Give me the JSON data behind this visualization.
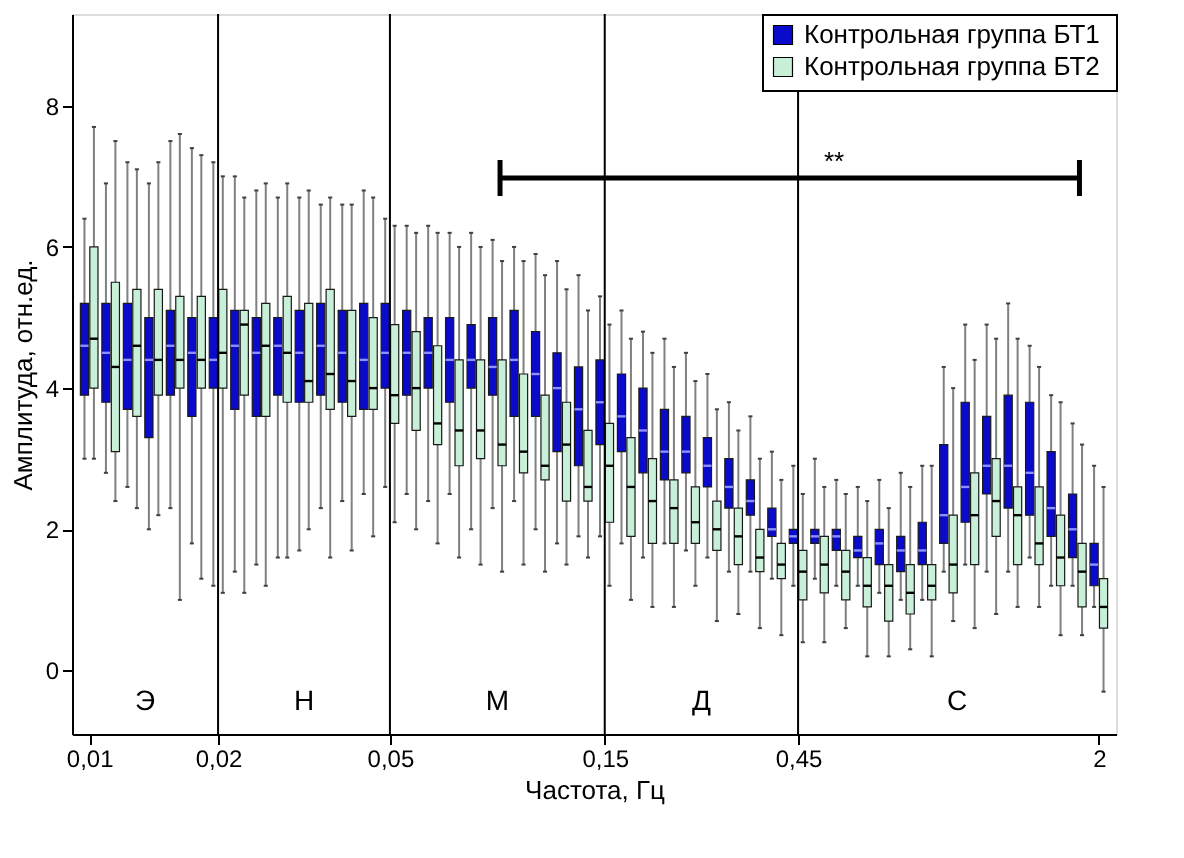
{
  "chart_data": {
    "type": "box",
    "xlabel": "Частота, Гц",
    "ylabel": "Амплитуда, отн.ед.",
    "categories": [
      "0,01",
      null,
      null,
      null,
      null,
      null,
      "0,02",
      null,
      null,
      null,
      null,
      null,
      null,
      null,
      "0,05",
      null,
      null,
      null,
      null,
      null,
      null,
      null,
      null,
      null,
      "0,15",
      null,
      null,
      null,
      null,
      null,
      null,
      null,
      null,
      "0,45",
      null,
      null,
      null,
      null,
      null,
      null,
      null,
      null,
      null,
      null,
      null,
      null,
      null,
      "2"
    ],
    "ylim": [
      -0.9,
      9.3
    ],
    "yticks": [
      0,
      2,
      4,
      6,
      8
    ],
    "grid": false,
    "legend": "top right",
    "ref_lines": [
      {
        "axis": "x",
        "value": "0,02"
      },
      {
        "axis": "x",
        "value": "0,05"
      },
      {
        "axis": "x",
        "value": "0,15"
      },
      {
        "axis": "x",
        "value": "0,45"
      }
    ],
    "annotations": [
      "Э",
      "Н",
      "М",
      "Д",
      "С",
      "**"
    ],
    "series": [
      {
        "name": "Контрольная группа  БТ1",
        "color": "#0a0acd",
        "boxes": [
          {
            "low": 3.0,
            "q1": 3.9,
            "median": 4.6,
            "q3": 5.2,
            "high": 6.4
          },
          {
            "low": 2.8,
            "q1": 3.8,
            "median": 4.5,
            "q3": 5.2,
            "high": 6.9
          },
          {
            "low": 2.6,
            "q1": 3.7,
            "median": 4.4,
            "q3": 5.2,
            "high": 7.2
          },
          {
            "low": 2.0,
            "q1": 3.3,
            "median": 4.4,
            "q3": 5.0,
            "high": 6.9
          },
          {
            "low": 2.3,
            "q1": 3.9,
            "median": 4.6,
            "q3": 5.1,
            "high": 7.5
          },
          {
            "low": 1.8,
            "q1": 3.6,
            "median": 4.5,
            "q3": 5.0,
            "high": 7.4
          },
          {
            "low": 1.2,
            "q1": 4.0,
            "median": 4.4,
            "q3": 5.0,
            "high": 7.2
          },
          {
            "low": 1.4,
            "q1": 3.7,
            "median": 4.6,
            "q3": 5.1,
            "high": 7.0
          },
          {
            "low": 1.5,
            "q1": 3.6,
            "median": 4.5,
            "q3": 5.0,
            "high": 6.8
          },
          {
            "low": 1.6,
            "q1": 3.9,
            "median": 4.6,
            "q3": 5.0,
            "high": 6.7
          },
          {
            "low": 1.7,
            "q1": 3.8,
            "median": 4.5,
            "q3": 5.1,
            "high": 6.7
          },
          {
            "low": 2.3,
            "q1": 3.9,
            "median": 4.6,
            "q3": 5.2,
            "high": 6.6
          },
          {
            "low": 2.4,
            "q1": 3.8,
            "median": 4.5,
            "q3": 5.1,
            "high": 6.6
          },
          {
            "low": 2.5,
            "q1": 3.7,
            "median": 4.4,
            "q3": 5.2,
            "high": 6.8
          },
          {
            "low": 2.6,
            "q1": 4.0,
            "median": 4.5,
            "q3": 5.2,
            "high": 6.4
          },
          {
            "low": 2.5,
            "q1": 3.9,
            "median": 4.5,
            "q3": 5.1,
            "high": 6.3
          },
          {
            "low": 2.4,
            "q1": 4.0,
            "median": 4.5,
            "q3": 5.0,
            "high": 6.3
          },
          {
            "low": 2.5,
            "q1": 3.8,
            "median": 4.4,
            "q3": 5.0,
            "high": 6.2
          },
          {
            "low": 2.0,
            "q1": 4.0,
            "median": 4.4,
            "q3": 4.9,
            "high": 6.2
          },
          {
            "low": 2.3,
            "q1": 3.9,
            "median": 4.3,
            "q3": 5.0,
            "high": 6.1
          },
          {
            "low": 2.4,
            "q1": 3.6,
            "median": 4.4,
            "q3": 5.1,
            "high": 6.0
          },
          {
            "low": 2.0,
            "q1": 3.6,
            "median": 4.2,
            "q3": 4.8,
            "high": 5.9
          },
          {
            "low": 1.8,
            "q1": 3.1,
            "median": 4.0,
            "q3": 4.5,
            "high": 5.8
          },
          {
            "low": 1.9,
            "q1": 2.9,
            "median": 3.7,
            "q3": 4.3,
            "high": 5.6
          },
          {
            "low": 1.9,
            "q1": 3.2,
            "median": 3.8,
            "q3": 4.4,
            "high": 5.3
          },
          {
            "low": 1.8,
            "q1": 3.1,
            "median": 3.6,
            "q3": 4.2,
            "high": 5.1
          },
          {
            "low": 1.6,
            "q1": 2.8,
            "median": 3.4,
            "q3": 4.0,
            "high": 4.8
          },
          {
            "low": 1.8,
            "q1": 2.7,
            "median": 3.1,
            "q3": 3.7,
            "high": 4.7
          },
          {
            "low": 1.7,
            "q1": 2.8,
            "median": 3.1,
            "q3": 3.6,
            "high": 4.5
          },
          {
            "low": 1.6,
            "q1": 2.6,
            "median": 2.9,
            "q3": 3.3,
            "high": 4.2
          },
          {
            "low": 1.4,
            "q1": 2.3,
            "median": 2.6,
            "q3": 3.0,
            "high": 3.8
          },
          {
            "low": 1.4,
            "q1": 2.2,
            "median": 2.4,
            "q3": 2.7,
            "high": 3.6
          },
          {
            "low": 1.3,
            "q1": 1.9,
            "median": 2.0,
            "q3": 2.3,
            "high": 3.1
          },
          {
            "low": 1.2,
            "q1": 1.8,
            "median": 1.9,
            "q3": 2.0,
            "high": 2.9
          },
          {
            "low": 1.3,
            "q1": 1.8,
            "median": 1.9,
            "q3": 2.0,
            "high": 3.0
          },
          {
            "low": 1.2,
            "q1": 1.7,
            "median": 1.9,
            "q3": 2.0,
            "high": 2.7
          },
          {
            "low": 1.2,
            "q1": 1.6,
            "median": 1.7,
            "q3": 1.9,
            "high": 2.6
          },
          {
            "low": 1.1,
            "q1": 1.5,
            "median": 1.8,
            "q3": 2.0,
            "high": 2.7
          },
          {
            "low": 1.0,
            "q1": 1.4,
            "median": 1.7,
            "q3": 1.9,
            "high": 2.8
          },
          {
            "low": 1.0,
            "q1": 1.5,
            "median": 1.7,
            "q3": 2.1,
            "high": 2.9
          },
          {
            "low": 1.4,
            "q1": 1.8,
            "median": 2.2,
            "q3": 3.2,
            "high": 4.3
          },
          {
            "low": 1.5,
            "q1": 2.1,
            "median": 2.6,
            "q3": 3.8,
            "high": 4.9
          },
          {
            "low": 1.4,
            "q1": 2.5,
            "median": 2.9,
            "q3": 3.6,
            "high": 4.9
          },
          {
            "low": 1.4,
            "q1": 2.3,
            "median": 2.9,
            "q3": 3.9,
            "high": 5.2
          },
          {
            "low": 1.6,
            "q1": 2.2,
            "median": 2.8,
            "q3": 3.8,
            "high": 4.6
          },
          {
            "low": 1.2,
            "q1": 1.9,
            "median": 2.3,
            "q3": 3.1,
            "high": 3.9
          },
          {
            "low": 1.2,
            "q1": 1.6,
            "median": 2.0,
            "q3": 2.5,
            "high": 3.5
          },
          {
            "low": 0.9,
            "q1": 1.2,
            "median": 1.5,
            "q3": 1.8,
            "high": 2.9
          }
        ]
      },
      {
        "name": "Контрольная группа  БТ2",
        "color": "#c8f0d8",
        "boxes": [
          {
            "low": 3.0,
            "q1": 4.0,
            "median": 4.7,
            "q3": 6.0,
            "high": 7.7
          },
          {
            "low": 2.4,
            "q1": 3.1,
            "median": 4.3,
            "q3": 5.5,
            "high": 7.5
          },
          {
            "low": 2.3,
            "q1": 3.6,
            "median": 4.6,
            "q3": 5.4,
            "high": 7.1
          },
          {
            "low": 2.2,
            "q1": 3.9,
            "median": 4.4,
            "q3": 5.4,
            "high": 7.2
          },
          {
            "low": 1.0,
            "q1": 4.0,
            "median": 4.4,
            "q3": 5.3,
            "high": 7.6
          },
          {
            "low": 1.3,
            "q1": 4.0,
            "median": 4.4,
            "q3": 5.3,
            "high": 7.3
          },
          {
            "low": 1.1,
            "q1": 4.0,
            "median": 4.5,
            "q3": 5.4,
            "high": 7.0
          },
          {
            "low": 1.1,
            "q1": 3.9,
            "median": 4.9,
            "q3": 5.1,
            "high": 6.7
          },
          {
            "low": 1.2,
            "q1": 3.6,
            "median": 4.6,
            "q3": 5.2,
            "high": 6.9
          },
          {
            "low": 1.6,
            "q1": 3.8,
            "median": 4.5,
            "q3": 5.3,
            "high": 6.9
          },
          {
            "low": 2.0,
            "q1": 3.8,
            "median": 4.1,
            "q3": 5.2,
            "high": 6.8
          },
          {
            "low": 1.6,
            "q1": 3.7,
            "median": 4.2,
            "q3": 5.4,
            "high": 6.7
          },
          {
            "low": 1.7,
            "q1": 3.6,
            "median": 4.1,
            "q3": 5.1,
            "high": 6.6
          },
          {
            "low": 1.9,
            "q1": 3.7,
            "median": 4.0,
            "q3": 5.0,
            "high": 6.7
          },
          {
            "low": 2.1,
            "q1": 3.5,
            "median": 3.9,
            "q3": 4.9,
            "high": 6.3
          },
          {
            "low": 2.0,
            "q1": 3.4,
            "median": 4.0,
            "q3": 4.8,
            "high": 6.2
          },
          {
            "low": 1.8,
            "q1": 3.2,
            "median": 3.5,
            "q3": 4.6,
            "high": 6.2
          },
          {
            "low": 1.6,
            "q1": 2.9,
            "median": 3.4,
            "q3": 4.4,
            "high": 6.0
          },
          {
            "low": 1.5,
            "q1": 3.0,
            "median": 3.4,
            "q3": 4.4,
            "high": 6.0
          },
          {
            "low": 1.4,
            "q1": 2.9,
            "median": 3.2,
            "q3": 4.4,
            "high": 5.8
          },
          {
            "low": 1.5,
            "q1": 2.8,
            "median": 3.1,
            "q3": 4.2,
            "high": 5.8
          },
          {
            "low": 1.4,
            "q1": 2.7,
            "median": 2.9,
            "q3": 3.9,
            "high": 5.6
          },
          {
            "low": 1.5,
            "q1": 2.4,
            "median": 3.2,
            "q3": 3.8,
            "high": 5.4
          },
          {
            "low": 1.6,
            "q1": 2.4,
            "median": 2.6,
            "q3": 3.4,
            "high": 5.1
          },
          {
            "low": 1.2,
            "q1": 2.1,
            "median": 2.9,
            "q3": 3.5,
            "high": 4.9
          },
          {
            "low": 1.0,
            "q1": 1.9,
            "median": 2.6,
            "q3": 3.3,
            "high": 4.7
          },
          {
            "low": 0.9,
            "q1": 1.8,
            "median": 2.4,
            "q3": 3.0,
            "high": 4.5
          },
          {
            "low": 0.9,
            "q1": 1.8,
            "median": 2.3,
            "q3": 2.7,
            "high": 4.3
          },
          {
            "low": 1.2,
            "q1": 1.8,
            "median": 2.1,
            "q3": 2.6,
            "high": 4.1
          },
          {
            "low": 0.7,
            "q1": 1.7,
            "median": 2.0,
            "q3": 2.4,
            "high": 3.7
          },
          {
            "low": 0.8,
            "q1": 1.5,
            "median": 1.9,
            "q3": 2.3,
            "high": 3.4
          },
          {
            "low": 0.6,
            "q1": 1.4,
            "median": 1.6,
            "q3": 2.0,
            "high": 3.0
          },
          {
            "low": 0.5,
            "q1": 1.3,
            "median": 1.5,
            "q3": 1.8,
            "high": 2.7
          },
          {
            "low": 0.4,
            "q1": 1.0,
            "median": 1.4,
            "q3": 1.7,
            "high": 2.5
          },
          {
            "low": 0.4,
            "q1": 1.1,
            "median": 1.5,
            "q3": 1.9,
            "high": 2.6
          },
          {
            "low": 0.6,
            "q1": 1.0,
            "median": 1.4,
            "q3": 1.7,
            "high": 2.5
          },
          {
            "low": 0.2,
            "q1": 0.9,
            "median": 1.2,
            "q3": 1.6,
            "high": 2.4
          },
          {
            "low": 0.2,
            "q1": 0.7,
            "median": 1.2,
            "q3": 1.5,
            "high": 2.3
          },
          {
            "low": 0.3,
            "q1": 0.8,
            "median": 1.1,
            "q3": 1.5,
            "high": 2.6
          },
          {
            "low": 0.2,
            "q1": 1.0,
            "median": 1.2,
            "q3": 1.5,
            "high": 2.9
          },
          {
            "low": 0.7,
            "q1": 1.1,
            "median": 1.5,
            "q3": 2.2,
            "high": 4.0
          },
          {
            "low": 0.6,
            "q1": 1.5,
            "median": 2.2,
            "q3": 2.8,
            "high": 4.4
          },
          {
            "low": 0.8,
            "q1": 1.9,
            "median": 2.4,
            "q3": 3.0,
            "high": 4.7
          },
          {
            "low": 0.9,
            "q1": 1.5,
            "median": 2.2,
            "q3": 2.6,
            "high": 4.7
          },
          {
            "low": 0.9,
            "q1": 1.5,
            "median": 1.8,
            "q3": 2.6,
            "high": 4.3
          },
          {
            "low": 0.5,
            "q1": 1.2,
            "median": 1.6,
            "q3": 2.2,
            "high": 3.8
          },
          {
            "low": 0.5,
            "q1": 0.9,
            "median": 1.4,
            "q3": 1.8,
            "high": 3.2
          },
          {
            "low": -0.3,
            "q1": 0.6,
            "median": 0.9,
            "q3": 1.3,
            "high": 2.6
          }
        ]
      }
    ]
  }
}
